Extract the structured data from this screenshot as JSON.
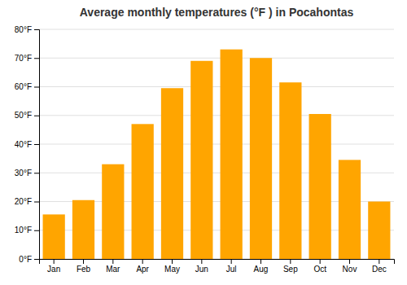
{
  "chart_data": {
    "type": "bar",
    "title": "Average monthly temperatures (°F ) in Pocahontas",
    "categories": [
      "Jan",
      "Feb",
      "Mar",
      "Apr",
      "May",
      "Jun",
      "Jul",
      "Aug",
      "Sep",
      "Oct",
      "Nov",
      "Dec"
    ],
    "values": [
      15.5,
      20.5,
      33.0,
      47.0,
      59.5,
      69.0,
      73.0,
      70.0,
      61.5,
      50.5,
      34.5,
      20.0
    ],
    "color": "#FFA500",
    "ylim": [
      0,
      80
    ],
    "yticks": [
      {
        "value": 0,
        "label": "0°F"
      },
      {
        "value": 10,
        "label": "10°F"
      },
      {
        "value": 20,
        "label": "20°F"
      },
      {
        "value": 30,
        "label": "30°F"
      },
      {
        "value": 40,
        "label": "40°F"
      },
      {
        "value": 50,
        "label": "50°F"
      },
      {
        "value": 60,
        "label": "60°F"
      },
      {
        "value": 70,
        "label": "70°F"
      },
      {
        "value": 80,
        "label": "80°F"
      }
    ],
    "grid": true
  }
}
